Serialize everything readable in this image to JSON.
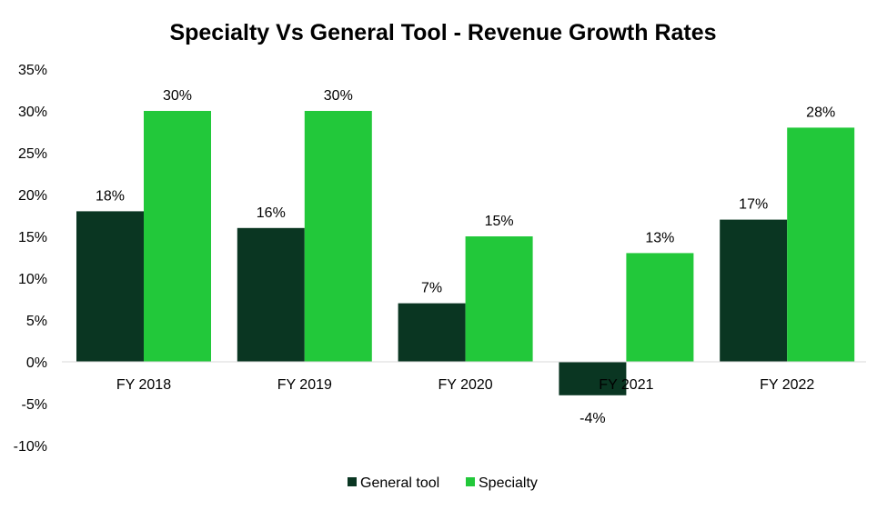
{
  "chart_data": {
    "type": "bar",
    "title": "Specialty Vs General Tool - Revenue Growth Rates",
    "categories": [
      "FY 2018",
      "FY 2019",
      "FY 2020",
      "FY 2021",
      "FY 2022"
    ],
    "series": [
      {
        "name": "General tool",
        "values": [
          18,
          16,
          7,
          -4,
          17
        ],
        "color": "#0a3622"
      },
      {
        "name": "Specialty",
        "values": [
          30,
          30,
          15,
          13,
          28
        ],
        "color": "#22c83a"
      }
    ],
    "ylim": [
      -10,
      35
    ],
    "yticks": [
      35,
      30,
      25,
      20,
      15,
      10,
      5,
      0,
      -5,
      -10
    ],
    "ytick_labels": [
      "35%",
      "30%",
      "25%",
      "20%",
      "15%",
      "10%",
      "5%",
      "0%",
      "-5%",
      "-10%"
    ],
    "data_labels": [
      [
        "18%",
        "16%",
        "7%",
        "-4%",
        "17%"
      ],
      [
        "30%",
        "30%",
        "15%",
        "13%",
        "28%"
      ]
    ],
    "legend_position": "bottom",
    "grid": false
  }
}
